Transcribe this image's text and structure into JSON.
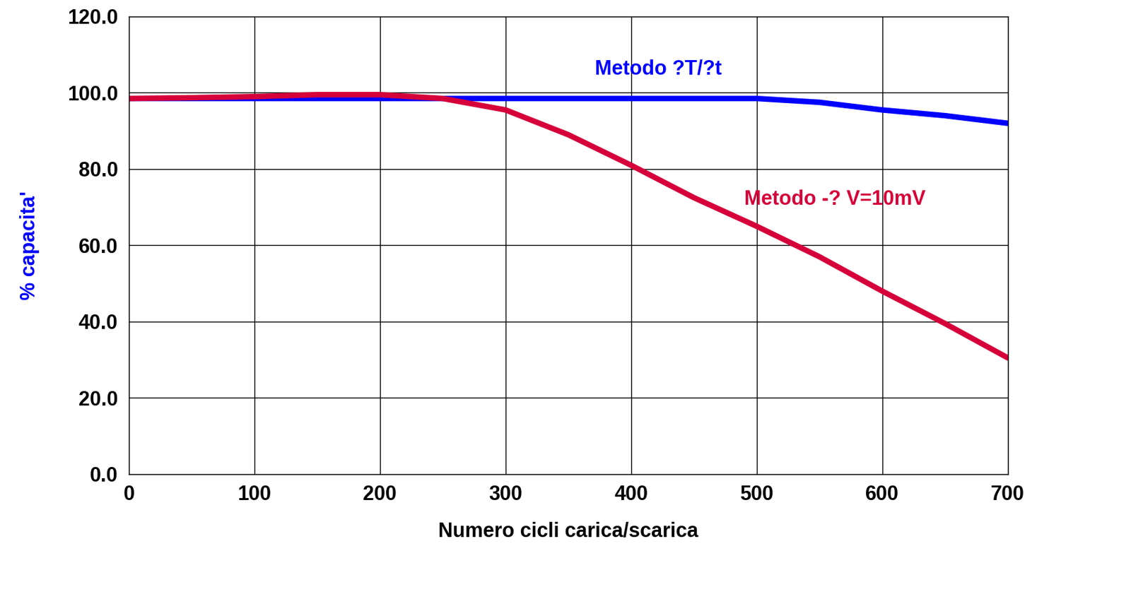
{
  "chart_data": {
    "type": "line",
    "x_label": "Numero cicli carica/scarica",
    "y_label": "% capacita'",
    "x": [
      0,
      50,
      100,
      150,
      200,
      250,
      300,
      350,
      400,
      450,
      500,
      550,
      600,
      650,
      700
    ],
    "series": [
      {
        "name": "Metodo ?T/?t",
        "color": "#0000ff",
        "values": [
          98.5,
          98.5,
          98.5,
          98.5,
          98.5,
          98.5,
          98.5,
          98.5,
          98.5,
          98.5,
          98.5,
          97.5,
          95.5,
          94,
          92
        ]
      },
      {
        "name": "Metodo -? V=10mV",
        "color": "#d6003a",
        "values": [
          98.5,
          98.7,
          99,
          99.5,
          99.5,
          98.5,
          95.5,
          89,
          81,
          72.5,
          65,
          57,
          48,
          39.5,
          30.5
        ]
      }
    ],
    "xlim": [
      0,
      700
    ],
    "xticks": [
      0,
      100,
      200,
      300,
      400,
      500,
      600,
      700
    ],
    "ylim": [
      0,
      120
    ],
    "yticks": [
      {
        "value": 0,
        "label": "0.0"
      },
      {
        "value": 20,
        "label": "20.0"
      },
      {
        "value": 40,
        "label": "40.0"
      },
      {
        "value": 60,
        "label": "60.0"
      },
      {
        "value": 80,
        "label": "80.0"
      },
      {
        "value": 100,
        "label": "100.0"
      },
      {
        "value": 120,
        "label": "120.0"
      }
    ],
    "grid": true
  }
}
